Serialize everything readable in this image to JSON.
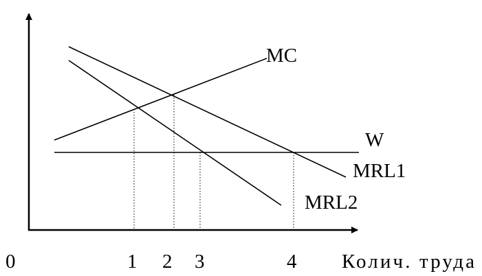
{
  "diagram": {
    "curves": {
      "mc": {
        "label": "MC"
      },
      "w": {
        "label": "W"
      },
      "mrl1": {
        "label": "MRL1"
      },
      "mrl2": {
        "label": "MRL2"
      }
    },
    "x_axis": {
      "origin_label": "0",
      "ticks": [
        "1",
        "2",
        "3",
        "4"
      ],
      "label": "Колич. труда"
    }
  }
}
